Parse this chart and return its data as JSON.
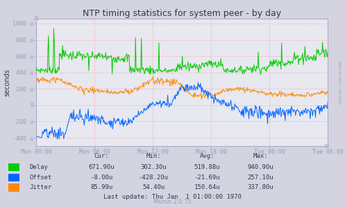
{
  "title": "NTP timing statistics for system peer - by day",
  "ylabel": "seconds",
  "background_color": "#d4d4e0",
  "plot_bg_color": "#e8e8f0",
  "grid_color": "#ff8888",
  "ylim": [
    -500,
    1060
  ],
  "yticks": [
    -400,
    -200,
    0,
    200,
    400,
    600,
    800,
    1000
  ],
  "ytick_labels": [
    "-400 u",
    "-200 u",
    "0",
    "200 u",
    "400 u",
    "600 u",
    "800 u",
    "1000 u"
  ],
  "xtick_labels": [
    "Mon 00:00",
    "Mon 06:00",
    "Mon 12:00",
    "Mon 18:00",
    "Tue 00:00",
    "Tue 06:00"
  ],
  "xtick_positions": [
    0.0,
    0.2,
    0.4,
    0.6,
    0.8,
    1.0
  ],
  "delay_color": "#00cc00",
  "offset_color": "#0066ff",
  "jitter_color": "#ff8800",
  "legend_items": [
    "Delay",
    "Offset",
    "Jitter"
  ],
  "stats_header": [
    "Cur:",
    "Min:",
    "Avg:",
    "Max:"
  ],
  "delay_stats": [
    "671.90u",
    "302.30u",
    "519.88u",
    "940.90u"
  ],
  "offset_stats": [
    "-8.00u",
    "-428.20u",
    "-21.69u",
    "257.10u"
  ],
  "jitter_stats": [
    "85.99u",
    "54.40u",
    "150.64u",
    "337.80u"
  ],
  "last_update": "Last update: Thu Jan  1 01:00:00 1970",
  "munin_version": "Munin 2.0.75",
  "watermark": "RRDTOOL / TOBI OETIKER",
  "spine_color": "#aaaacc",
  "text_color": "#333355",
  "muted_color": "#9999bb"
}
